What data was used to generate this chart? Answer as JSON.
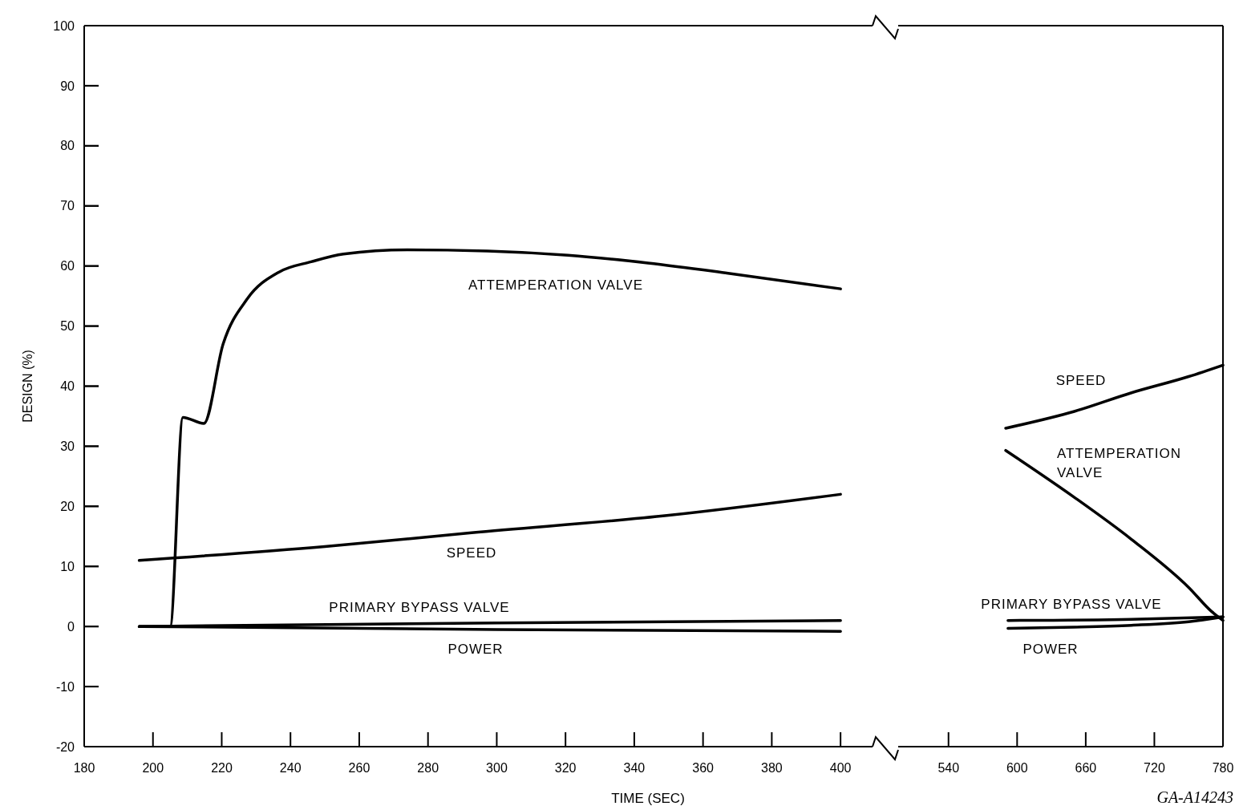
{
  "chart_data": [
    {
      "type": "line",
      "xlabel": "TIME (SEC)",
      "ylabel": "DESIGN (%)",
      "xlim": [
        180,
        409.3
      ],
      "ylim": [
        -20,
        100
      ],
      "xticks": [
        180,
        200,
        220,
        240,
        260,
        280,
        300,
        320,
        340,
        360,
        380,
        400
      ],
      "yticks": [
        -20,
        -10,
        0,
        10,
        20,
        30,
        40,
        50,
        60,
        70,
        80,
        90,
        100
      ],
      "series": [
        {
          "name": "ATTEMPERATION VALVE",
          "color": "#000000",
          "x": [
            196,
            205,
            208.7,
            214.8,
            220.4,
            227.4,
            236.7,
            246,
            255.4,
            274,
            297.3,
            320.7,
            344,
            367.3,
            400
          ],
          "values": [
            0,
            0,
            34.8,
            33.8,
            47,
            54.5,
            59,
            60.7,
            62,
            62.7,
            62.5,
            61.8,
            60.5,
            58.8,
            56.2
          ]
        },
        {
          "name": "SPEED",
          "color": "#000000",
          "x": [
            196,
            250,
            292.7,
            350,
            400
          ],
          "values": [
            11,
            13.3,
            15.6,
            18.5,
            22
          ]
        },
        {
          "name": "PRIMARY BYPASS VALVE",
          "color": "#000000",
          "x": [
            196,
            300,
            400
          ],
          "values": [
            0,
            0.6,
            1
          ]
        },
        {
          "name": "POWER",
          "color": "#000000",
          "x": [
            196,
            300,
            400
          ],
          "values": [
            0,
            -0.5,
            -0.8
          ]
        }
      ]
    },
    {
      "type": "line",
      "xlim": [
        496,
        780
      ],
      "ylim": [
        -20,
        100
      ],
      "xticks": [
        540,
        600,
        660,
        720,
        780
      ],
      "yticks": [
        -20,
        -10,
        0,
        10,
        20,
        30,
        40,
        50,
        60,
        70,
        80,
        90,
        100
      ],
      "tick_labels": "x",
      "annotations": [
        "GA-A14243"
      ],
      "series": [
        {
          "name": "ATTEMPERATION VALVE",
          "color": "#000000",
          "x": [
            590,
            650,
            700,
            750,
            770,
            780
          ],
          "values": [
            29.3,
            21.5,
            14.5,
            6.5,
            2.5,
            1
          ]
        },
        {
          "name": "SPEED",
          "color": "#000000",
          "x": [
            590,
            650,
            700,
            750,
            780
          ],
          "values": [
            33,
            35.8,
            38.9,
            41.6,
            43.5
          ]
        },
        {
          "name": "PRIMARY BYPASS VALVE",
          "color": "#000000",
          "x": [
            592,
            700,
            780
          ],
          "values": [
            1,
            1.2,
            1.6
          ]
        },
        {
          "name": "POWER",
          "color": "#000000",
          "x": [
            592,
            650,
            700,
            750,
            780
          ],
          "values": [
            -0.3,
            -0.1,
            0.2,
            0.8,
            1.6
          ]
        }
      ]
    }
  ]
}
